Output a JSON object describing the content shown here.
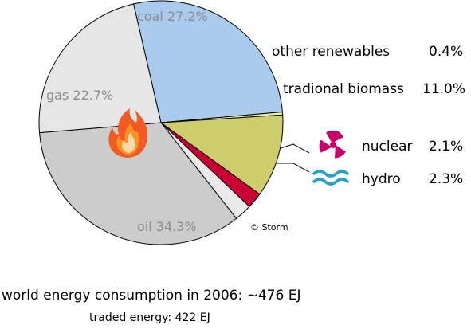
{
  "chart_data": {
    "type": "pie",
    "start_angle_deg": 103,
    "direction": "clockwise",
    "slices": [
      {
        "label": "coal",
        "value": 27.2,
        "color": "#abcbee",
        "label_display": "coal 27.2%"
      },
      {
        "label": "other renewables",
        "value": 0.4,
        "color": "#f0f0a0",
        "label_display": "other renewables",
        "value_display": "0.4%"
      },
      {
        "label": "tradional biomass",
        "value": 11.0,
        "color": "#cdcd6c",
        "label_display": "tradional biomass",
        "value_display": "11.0%"
      },
      {
        "label": "nuclear",
        "value": 2.1,
        "color": "#cc0033",
        "label_display": "nuclear",
        "value_display": "2.1%"
      },
      {
        "label": "hydro",
        "value": 2.3,
        "color": "#eaeaea",
        "label_display": "hydro",
        "value_display": "2.3%"
      },
      {
        "label": "oil",
        "value": 34.3,
        "color": "#cccccc",
        "label_display": "oil 34.3%"
      },
      {
        "label": "gas",
        "value": 22.7,
        "color": "#e6e6e6",
        "label_display": "gas 22.7%"
      }
    ],
    "icons": [
      "flame-icon",
      "radiation-icon",
      "water-waves-icon"
    ]
  },
  "copyright": "© Storm",
  "footer": {
    "line1": "world energy consumption in 2006: ~476 EJ",
    "line2": "traded energy: 422 EJ"
  }
}
